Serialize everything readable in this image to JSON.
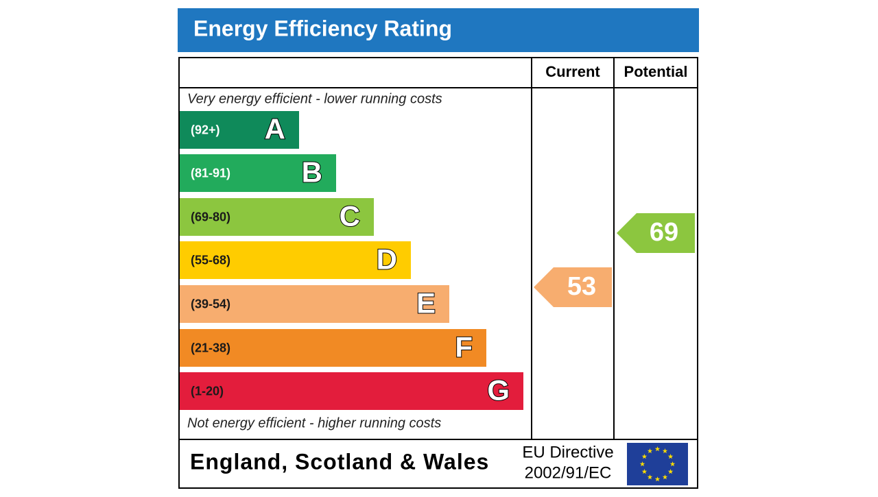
{
  "header": {
    "title": "Energy Efficiency Rating",
    "color": "#1f77c0"
  },
  "columns": {
    "current": "Current",
    "potential": "Potential"
  },
  "top_note": "Very energy efficient - lower running costs",
  "bands": [
    {
      "range": "(92+)",
      "letter": "A",
      "color": "#0f8a5a",
      "text_color": "#ffffff"
    },
    {
      "range": "(81-91)",
      "letter": "B",
      "color": "#22ab5c",
      "text_color": "#ffffff"
    },
    {
      "range": "(69-80)",
      "letter": "C",
      "color": "#8cc63f",
      "text_color": "#1a1a1a"
    },
    {
      "range": "(55-68)",
      "letter": "D",
      "color": "#ffcc00",
      "text_color": "#1a1a1a"
    },
    {
      "range": "(39-54)",
      "letter": "E",
      "color": "#f7ad6f",
      "text_color": "#1a1a1a"
    },
    {
      "range": "(21-38)",
      "letter": "F",
      "color": "#f18a24",
      "text_color": "#1a1a1a"
    },
    {
      "range": "(1-20)",
      "letter": "G",
      "color": "#e31d3c",
      "text_color": "#1a1a1a"
    }
  ],
  "bottom_note": "Not energy efficient - higher running costs",
  "ratings": {
    "current": {
      "value": 53,
      "color": "#f7ad6f"
    },
    "potential": {
      "value": 69,
      "color": "#8cc63f"
    }
  },
  "footer": {
    "region": "England, Scotland & Wales",
    "directive": [
      "EU Directive",
      "2002/91/EC"
    ]
  }
}
